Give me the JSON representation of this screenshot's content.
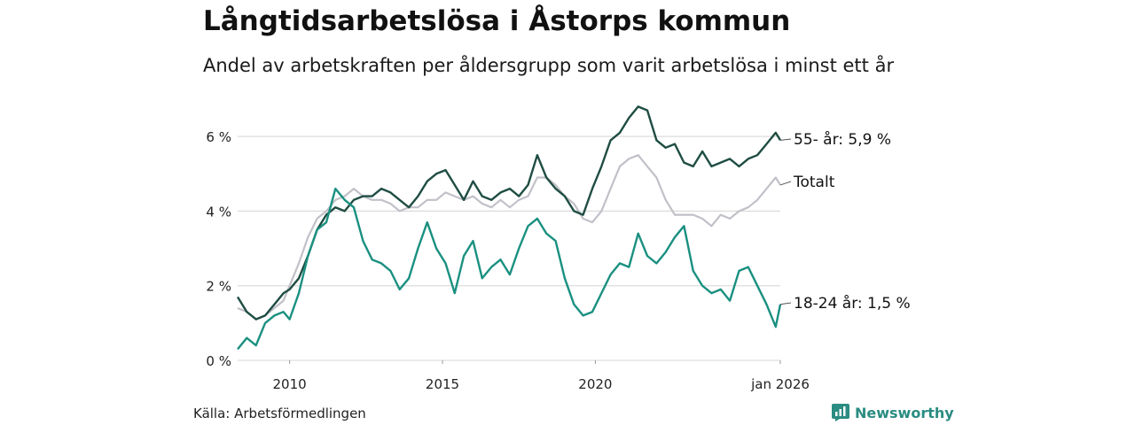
{
  "header": {
    "title": "Långtidsarbetslösa i Åstorps kommun",
    "subtitle": "Andel av arbetskraften per åldersgrupp som varit arbetslösa i minst ett år"
  },
  "footer": {
    "source": "Källa: Arbetsförmedlingen",
    "brand": "Newsworthy"
  },
  "colors": {
    "age55": "#1f4d43",
    "total": "#c2c0c8",
    "age18_24": "#1a9080",
    "grid": "#dddddd",
    "brand": "#2a8c82"
  },
  "chart_data": {
    "type": "line",
    "title": "Långtidsarbetslösa i Åstorps kommun",
    "xlabel": "",
    "ylabel": "",
    "ylim": [
      0,
      7
    ],
    "xlim": [
      2008.3,
      2026.05
    ],
    "y_ticks": [
      {
        "value": 0,
        "label": "0 %"
      },
      {
        "value": 2,
        "label": "2 %"
      },
      {
        "value": 4,
        "label": "4 %"
      },
      {
        "value": 6,
        "label": "6 %"
      }
    ],
    "x_ticks": [
      {
        "value": 2010,
        "label": "2010"
      },
      {
        "value": 2015,
        "label": "2015"
      },
      {
        "value": 2020,
        "label": "2020"
      },
      {
        "value": 2026.05,
        "label": "jan 2026"
      }
    ],
    "series": [
      {
        "key": "total",
        "name": "Totalt",
        "end_label": "Totalt",
        "x": [
          2008.3,
          2008.6,
          2008.9,
          2009.2,
          2009.5,
          2009.8,
          2010.0,
          2010.3,
          2010.6,
          2010.9,
          2011.2,
          2011.5,
          2011.8,
          2012.1,
          2012.4,
          2012.7,
          2013.0,
          2013.3,
          2013.6,
          2013.9,
          2014.2,
          2014.5,
          2014.8,
          2015.1,
          2015.4,
          2015.7,
          2016.0,
          2016.3,
          2016.6,
          2016.9,
          2017.2,
          2017.5,
          2017.8,
          2018.1,
          2018.4,
          2018.7,
          2019.0,
          2019.3,
          2019.6,
          2019.9,
          2020.2,
          2020.5,
          2020.8,
          2021.1,
          2021.4,
          2021.7,
          2022.0,
          2022.3,
          2022.6,
          2022.9,
          2023.2,
          2023.5,
          2023.8,
          2024.1,
          2024.4,
          2024.7,
          2025.0,
          2025.3,
          2025.6,
          2025.9,
          2026.05
        ],
        "values": [
          1.4,
          1.3,
          1.1,
          1.2,
          1.4,
          1.6,
          2.0,
          2.6,
          3.3,
          3.8,
          4.0,
          4.3,
          4.4,
          4.6,
          4.4,
          4.3,
          4.3,
          4.2,
          4.0,
          4.1,
          4.1,
          4.3,
          4.3,
          4.5,
          4.4,
          4.3,
          4.4,
          4.2,
          4.1,
          4.3,
          4.1,
          4.3,
          4.4,
          4.9,
          4.9,
          4.7,
          4.4,
          4.2,
          3.8,
          3.7,
          4.0,
          4.6,
          5.2,
          5.4,
          5.5,
          5.2,
          4.9,
          4.3,
          3.9,
          3.9,
          3.9,
          3.8,
          3.6,
          3.9,
          3.8,
          4.0,
          4.1,
          4.3,
          4.6,
          4.9,
          4.7
        ]
      },
      {
        "key": "age55",
        "name": "55- år",
        "end_label": "55- år: 5,9 %",
        "x": [
          2008.3,
          2008.6,
          2008.9,
          2009.2,
          2009.5,
          2009.8,
          2010.0,
          2010.3,
          2010.6,
          2010.9,
          2011.2,
          2011.5,
          2011.8,
          2012.1,
          2012.4,
          2012.7,
          2013.0,
          2013.3,
          2013.6,
          2013.9,
          2014.2,
          2014.5,
          2014.8,
          2015.1,
          2015.4,
          2015.7,
          2016.0,
          2016.3,
          2016.6,
          2016.9,
          2017.2,
          2017.5,
          2017.8,
          2018.1,
          2018.4,
          2018.7,
          2019.0,
          2019.3,
          2019.6,
          2019.9,
          2020.2,
          2020.5,
          2020.8,
          2021.1,
          2021.4,
          2021.7,
          2022.0,
          2022.3,
          2022.6,
          2022.9,
          2023.2,
          2023.5,
          2023.8,
          2024.1,
          2024.4,
          2024.7,
          2025.0,
          2025.3,
          2025.6,
          2025.9,
          2026.05
        ],
        "values": [
          1.7,
          1.3,
          1.1,
          1.2,
          1.5,
          1.8,
          1.9,
          2.2,
          2.8,
          3.5,
          3.9,
          4.1,
          4.0,
          4.3,
          4.4,
          4.4,
          4.6,
          4.5,
          4.3,
          4.1,
          4.4,
          4.8,
          5.0,
          5.1,
          4.7,
          4.3,
          4.8,
          4.4,
          4.3,
          4.5,
          4.6,
          4.4,
          4.7,
          5.5,
          4.9,
          4.6,
          4.4,
          4.0,
          3.9,
          4.6,
          5.2,
          5.9,
          6.1,
          6.5,
          6.8,
          6.7,
          5.9,
          5.7,
          5.8,
          5.3,
          5.2,
          5.6,
          5.2,
          5.3,
          5.4,
          5.2,
          5.4,
          5.5,
          5.8,
          6.1,
          5.9
        ]
      },
      {
        "key": "age18_24",
        "name": "18-24 år",
        "end_label": "18-24 år: 1,5 %",
        "x": [
          2008.3,
          2008.6,
          2008.9,
          2009.2,
          2009.5,
          2009.8,
          2010.0,
          2010.3,
          2010.6,
          2010.9,
          2011.2,
          2011.5,
          2011.8,
          2012.1,
          2012.4,
          2012.7,
          2013.0,
          2013.3,
          2013.6,
          2013.9,
          2014.2,
          2014.5,
          2014.8,
          2015.1,
          2015.4,
          2015.7,
          2016.0,
          2016.3,
          2016.6,
          2016.9,
          2017.2,
          2017.5,
          2017.8,
          2018.1,
          2018.4,
          2018.7,
          2019.0,
          2019.3,
          2019.6,
          2019.9,
          2020.2,
          2020.5,
          2020.8,
          2021.1,
          2021.4,
          2021.7,
          2022.0,
          2022.3,
          2022.6,
          2022.9,
          2023.2,
          2023.5,
          2023.8,
          2024.1,
          2024.4,
          2024.7,
          2025.0,
          2025.3,
          2025.6,
          2025.9,
          2026.05
        ],
        "values": [
          0.3,
          0.6,
          0.4,
          1.0,
          1.2,
          1.3,
          1.1,
          1.8,
          2.8,
          3.5,
          3.7,
          4.6,
          4.3,
          4.1,
          3.2,
          2.7,
          2.6,
          2.4,
          1.9,
          2.2,
          3.0,
          3.7,
          3.0,
          2.6,
          1.8,
          2.8,
          3.2,
          2.2,
          2.5,
          2.7,
          2.3,
          3.0,
          3.6,
          3.8,
          3.4,
          3.2,
          2.2,
          1.5,
          1.2,
          1.3,
          1.8,
          2.3,
          2.6,
          2.5,
          3.4,
          2.8,
          2.6,
          2.9,
          3.3,
          3.6,
          2.4,
          2.0,
          1.8,
          1.9,
          1.6,
          2.4,
          2.5,
          2.0,
          1.5,
          0.9,
          1.5
        ]
      }
    ]
  }
}
